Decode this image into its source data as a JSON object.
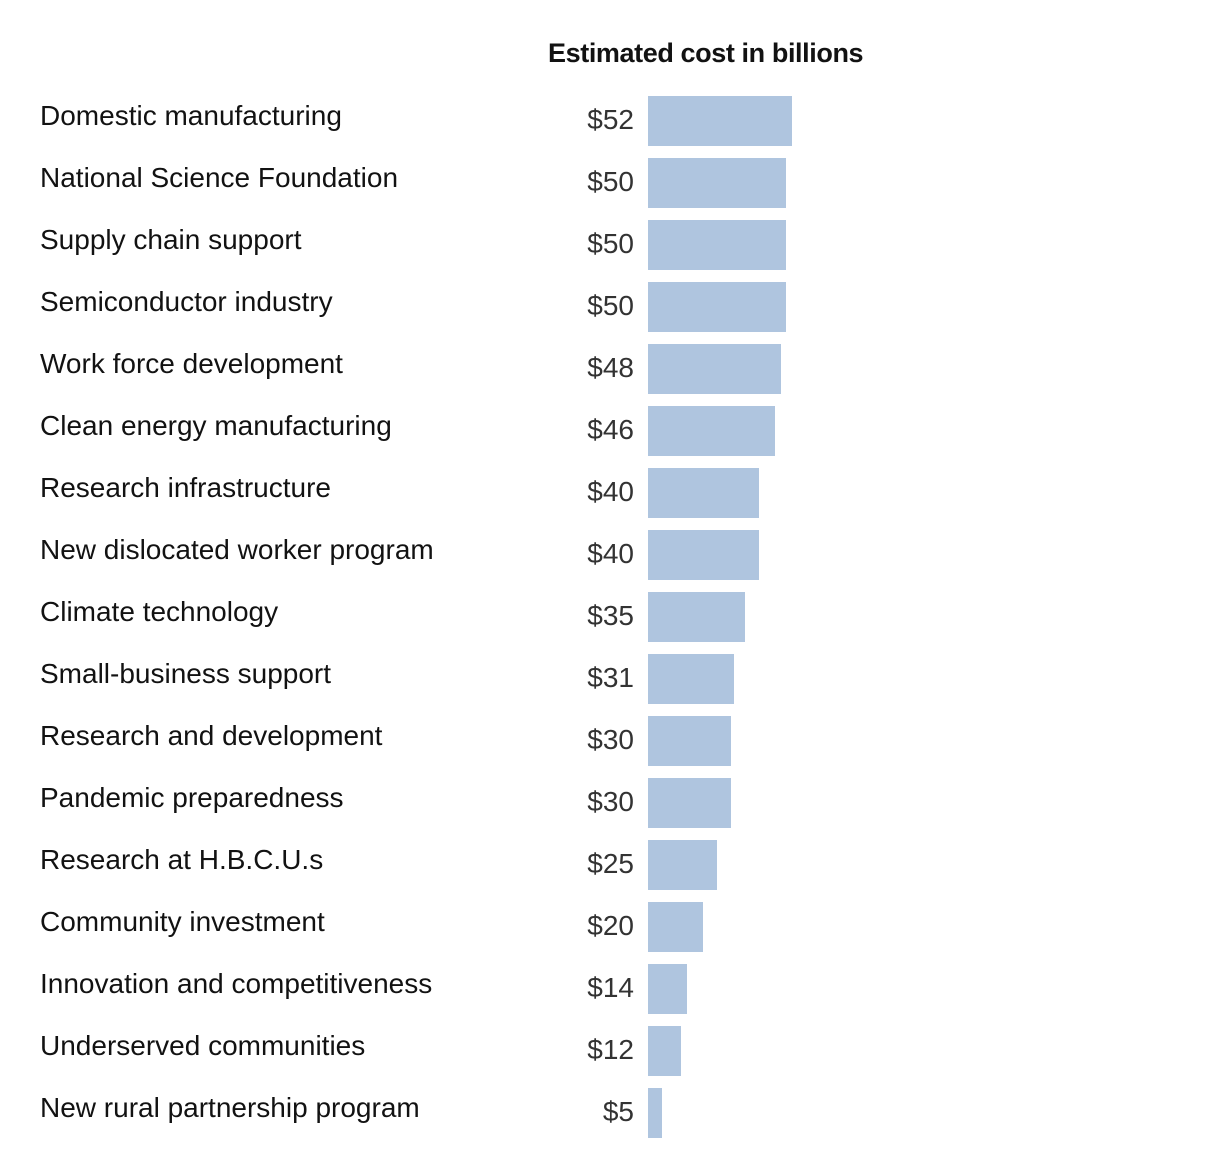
{
  "chart_data": {
    "type": "bar",
    "title": "Estimated cost in billions",
    "orientation": "horizontal",
    "value_prefix": "$",
    "bar_color": "#afc5df",
    "xlim": [
      0,
      52
    ],
    "categories": [
      "Domestic manufacturing",
      "National Science Foundation",
      "Supply chain support",
      "Semiconductor industry",
      "Work force development",
      "Clean energy manufacturing",
      "Research infrastructure",
      "New dislocated worker program",
      "Climate technology",
      "Small-business support",
      "Research and development",
      "Pandemic preparedness",
      "Research at H.B.C.U.s",
      "Community investment",
      "Innovation and competitiveness",
      "Underserved communities",
      "New rural partnership program"
    ],
    "values": [
      52,
      50,
      50,
      50,
      48,
      46,
      40,
      40,
      35,
      31,
      30,
      30,
      25,
      20,
      14,
      12,
      5
    ],
    "value_labels": [
      "$52",
      "$50",
      "$50",
      "$50",
      "$48",
      "$46",
      "$40",
      "$40",
      "$35",
      "$31",
      "$30",
      "$30",
      "$25",
      "$20",
      "$14",
      "$12",
      "$5"
    ]
  }
}
